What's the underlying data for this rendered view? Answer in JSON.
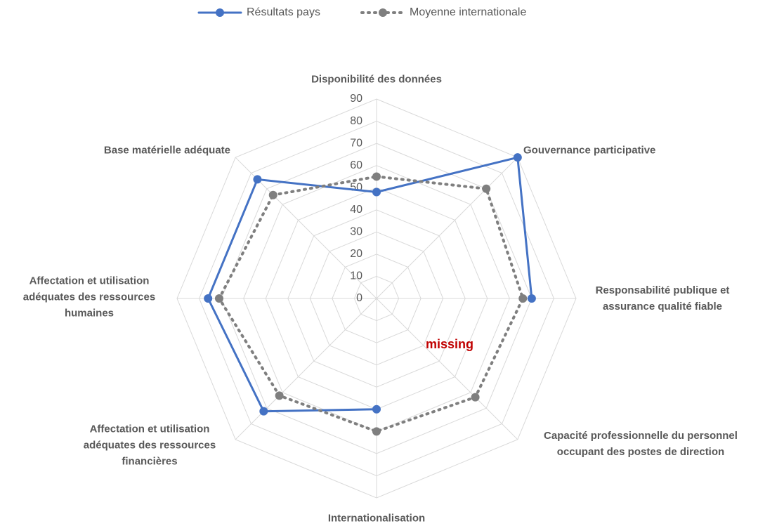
{
  "chart_data": {
    "type": "radar",
    "categories": [
      "Disponibilité des données",
      "Gouvernance participative",
      "Responsabilité publique et assurance qualité fiable",
      "Capacité professionnelle du personnel occupant des postes de direction",
      "Internationalisation",
      "Affectation et utilisation adéquates des ressources financières",
      "Affectation et utilisation adéquates des ressources humaines",
      "Base matérielle adéquate"
    ],
    "series": [
      {
        "name": "Résultats pays",
        "color": "#4472c4",
        "line_style": "solid",
        "values": [
          48,
          90,
          70,
          null,
          50,
          72,
          76,
          76
        ]
      },
      {
        "name": "Moyenne internationale",
        "color": "#7f7f7f",
        "line_style": "dotted",
        "values": [
          55,
          70,
          66,
          63,
          60,
          62,
          71,
          66
        ]
      }
    ],
    "ylim": [
      0,
      90
    ],
    "yticks": [
      0,
      10,
      20,
      30,
      40,
      50,
      60,
      70,
      80,
      90
    ],
    "grid": true,
    "legend": "top",
    "annotations": [
      {
        "text": "missing",
        "color": "#c00000"
      }
    ]
  }
}
